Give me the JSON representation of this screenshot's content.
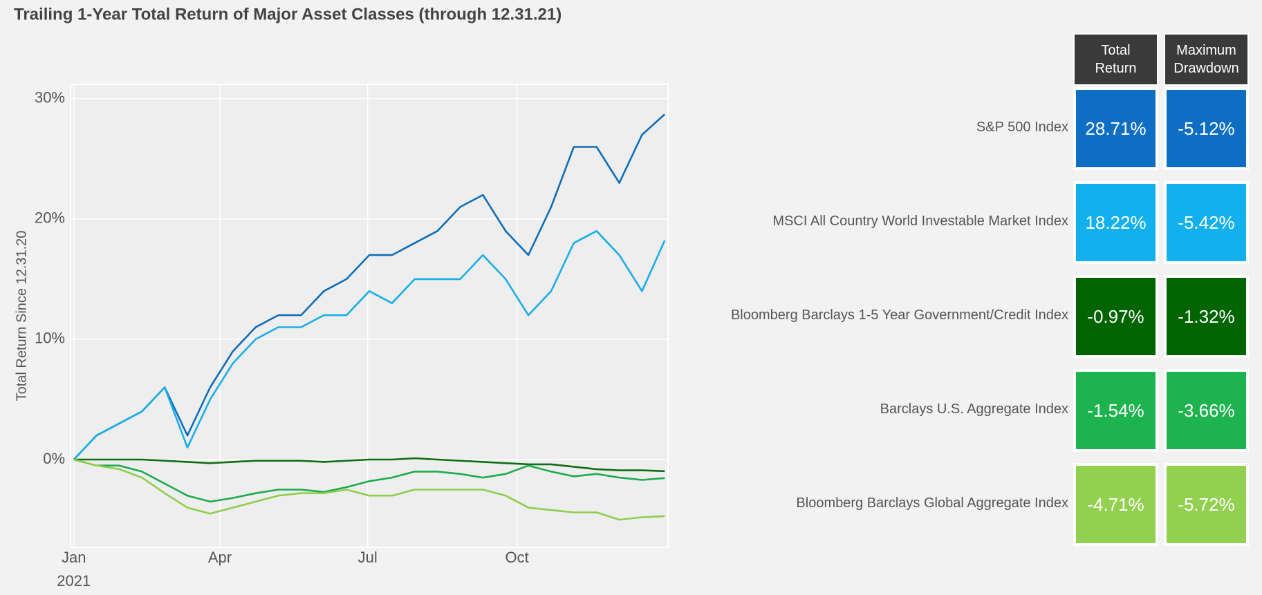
{
  "chart_data": {
    "type": "line",
    "title": "Trailing 1-Year Total Return of Major Asset Classes (through 12.31.21)",
    "y_label": "Total Return Since 12.31.20",
    "x_year_label": "2021",
    "x": [
      0,
      14,
      28,
      42,
      56,
      70,
      84,
      98,
      112,
      126,
      140,
      154,
      168,
      182,
      196,
      210,
      224,
      238,
      252,
      266,
      280,
      294,
      308,
      322,
      336,
      350,
      364
    ],
    "xlim": [
      -2,
      366
    ],
    "xticks": [
      {
        "value": 0,
        "label": "Jan"
      },
      {
        "value": 90,
        "label": "Apr"
      },
      {
        "value": 181,
        "label": "Jul"
      },
      {
        "value": 273,
        "label": "Oct"
      }
    ],
    "ylim": [
      -7.3,
      31.2
    ],
    "yticks": [
      {
        "value": 0,
        "label": "0%"
      },
      {
        "value": 10,
        "label": "10%"
      },
      {
        "value": 20,
        "label": "20%"
      },
      {
        "value": 30,
        "label": "30%"
      }
    ],
    "grid": true,
    "series": [
      {
        "color": "#0f6db8",
        "values": [
          0,
          2,
          3,
          4,
          6,
          2,
          6,
          9,
          11,
          12,
          12,
          14,
          15,
          17,
          17,
          18,
          19,
          21,
          22,
          19,
          17,
          21,
          26,
          26,
          23,
          27,
          28.71
        ]
      },
      {
        "color": "#19aee6",
        "values": [
          0,
          2,
          3,
          4,
          6,
          1,
          5,
          8,
          10,
          11,
          11,
          12,
          12,
          14,
          13,
          15,
          15,
          15,
          17,
          15,
          12,
          14,
          18,
          19,
          17,
          14,
          18.22
        ]
      },
      {
        "color": "#0d6e12",
        "values": [
          0,
          0,
          0,
          0,
          -0.1,
          -0.2,
          -0.3,
          -0.2,
          -0.1,
          -0.1,
          -0.1,
          -0.2,
          -0.1,
          0,
          0,
          0.1,
          0,
          -0.1,
          -0.2,
          -0.3,
          -0.4,
          -0.4,
          -0.6,
          -0.8,
          -0.9,
          -0.9,
          -0.97
        ]
      },
      {
        "color": "#1bab4c",
        "values": [
          0,
          -0.5,
          -0.5,
          -1,
          -2,
          -3,
          -3.5,
          -3.2,
          -2.8,
          -2.5,
          -2.5,
          -2.7,
          -2.3,
          -1.8,
          -1.5,
          -1,
          -1,
          -1.2,
          -1.5,
          -1.2,
          -0.5,
          -1,
          -1.4,
          -1.2,
          -1.5,
          -1.7,
          -1.54
        ]
      },
      {
        "color": "#8fce4c",
        "values": [
          0,
          -0.5,
          -0.8,
          -1.5,
          -2.8,
          -4,
          -4.5,
          -4,
          -3.5,
          -3,
          -2.8,
          -2.8,
          -2.5,
          -3,
          -3,
          -2.5,
          -2.5,
          -2.5,
          -2.5,
          -3,
          -4,
          -4.2,
          -4.4,
          -4.4,
          -5,
          -4.8,
          -4.71
        ]
      }
    ]
  },
  "table": {
    "columns": [
      "Total Return",
      "Maximum Drawdown"
    ],
    "rows": [
      {
        "name": "S&P 500 Index",
        "total_return": "28.71%",
        "max_drawdown": "-5.12%",
        "color": "#0e6ec3"
      },
      {
        "name": "MSCI All Country World Investable Market Index",
        "total_return": "18.22%",
        "max_drawdown": "-5.42%",
        "color": "#12b0ec"
      },
      {
        "name": "Bloomberg Barclays 1-5 Year Government/Credit Index",
        "total_return": "-0.97%",
        "max_drawdown": "-1.32%",
        "color": "#006400"
      },
      {
        "name": "Barclays U.S. Aggregate Index",
        "total_return": "-1.54%",
        "max_drawdown": "-3.66%",
        "color": "#1db34e"
      },
      {
        "name": "Bloomberg Barclays Global Aggregate Index",
        "total_return": "-4.71%",
        "max_drawdown": "-5.72%",
        "color": "#92d050"
      }
    ]
  }
}
